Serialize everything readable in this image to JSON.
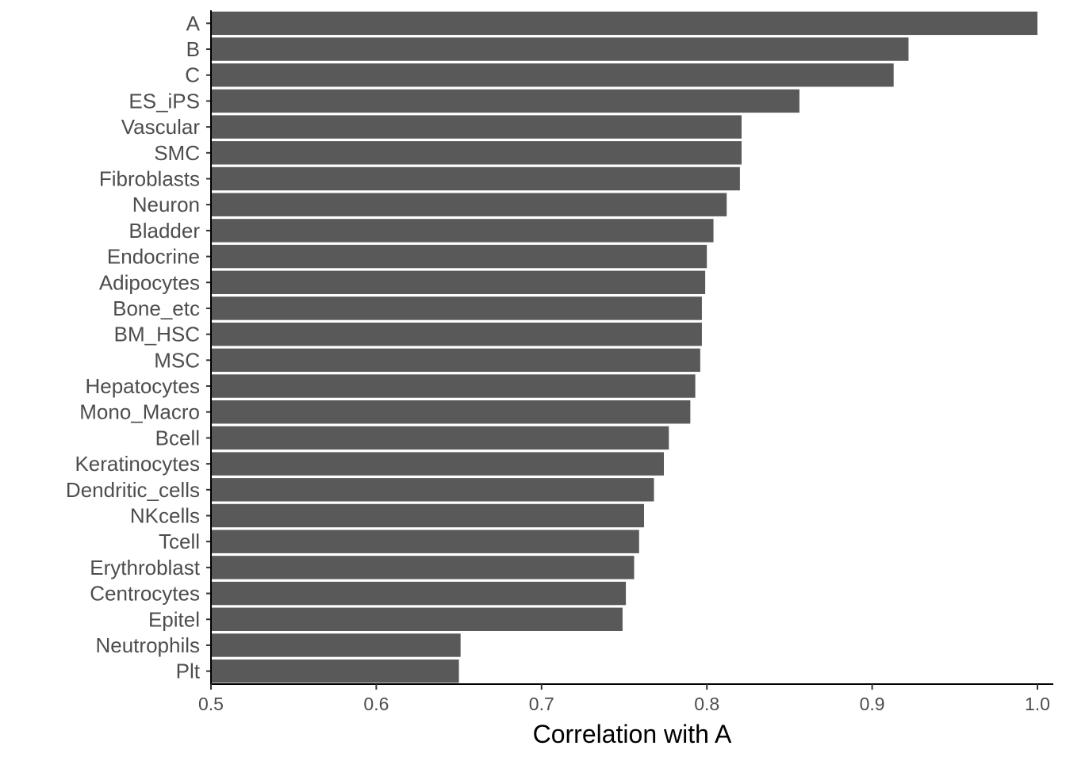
{
  "chart_data": {
    "type": "bar",
    "orientation": "horizontal",
    "categories": [
      "A",
      "B",
      "C",
      "ES_iPS",
      "Vascular",
      "SMC",
      "Fibroblasts",
      "Neuron",
      "Bladder",
      "Endocrine",
      "Adipocytes",
      "Bone_etc",
      "BM_HSC",
      "MSC",
      "Hepatocytes",
      "Mono_Macro",
      "Bcell",
      "Keratinocytes",
      "Dendritic_cells",
      "NKcells",
      "Tcell",
      "Erythroblast",
      "Centrocytes",
      "Epitel",
      "Neutrophils",
      "Plt"
    ],
    "values": [
      1.0,
      0.922,
      0.913,
      0.856,
      0.821,
      0.821,
      0.82,
      0.812,
      0.804,
      0.8,
      0.799,
      0.797,
      0.797,
      0.796,
      0.793,
      0.79,
      0.777,
      0.774,
      0.768,
      0.762,
      0.759,
      0.756,
      0.751,
      0.749,
      0.651,
      0.65
    ],
    "title": "",
    "xlabel": "Correlation with A",
    "ylabel": "",
    "xlim": [
      0.5,
      1.0
    ],
    "xticks": [
      "0.5",
      "0.6",
      "0.7",
      "0.8",
      "0.9",
      "1.0"
    ],
    "bar_color": "#595959",
    "grid": false,
    "legend": "none"
  }
}
